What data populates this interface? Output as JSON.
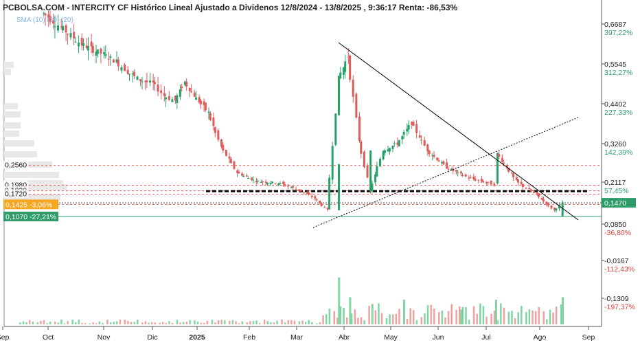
{
  "header": {
    "title": "PCBOLSA.COM - INTERCITY CF Histórico Lineal Ajustado a Dividenos 12/8/2024 - 13/8/2025 , 9:36:17 Renta: -86,53%",
    "indicator": "SMA (10) (20) (20)"
  },
  "colors": {
    "up": "#26a269",
    "down": "#e05a5a",
    "up_volume": "#7fd6a4",
    "down_volume": "#f2a0a0",
    "orange_tag": "#f5a623",
    "green_tag": "#2e9d6a",
    "pct_up": "#2e9d6a",
    "pct_down": "#e0443c",
    "level_line": "#e05a5a",
    "support_line": "#000000"
  },
  "chart_data": {
    "type": "candlestick",
    "title": "PCBOLSA.COM - INTERCITY CF Histórico Lineal Ajustado a Dividenos 12/8/2024 - 13/8/2025 , 9:36:17 Renta: -86,53%",
    "x_ticks": [
      "Sep",
      "Oct",
      "Nov",
      "Dic",
      "2025",
      "Feb",
      "Mar",
      "Abr",
      "May",
      "Jun",
      "Jul",
      "Ago",
      "Sep"
    ],
    "y_ticks": [
      {
        "value": "0,6687",
        "pct": "397,22%"
      },
      {
        "value": "0,5545",
        "pct": "312,27%"
      },
      {
        "value": "0,4402",
        "pct": "227,33%"
      },
      {
        "value": "0,3260",
        "pct": "142,39%"
      },
      {
        "value": "0,2117",
        "pct": "57,45%"
      },
      {
        "value": "0,0850",
        "pct": "-36,80%"
      },
      {
        "value": "-0,0167",
        "pct": "-112,43%"
      },
      {
        "value": "-0,1309",
        "pct": "-197,37%"
      }
    ],
    "last_price": "0,1470",
    "levels": [
      {
        "value": "0,2560"
      },
      {
        "value": "0,1980"
      },
      {
        "value": "0,1820"
      },
      {
        "value": "0,1720"
      },
      {
        "value": "0,1425",
        "pct": "-3,06%"
      },
      {
        "value": "0,1070",
        "pct": "-27,21%"
      }
    ],
    "series": [
      {
        "name": "Close",
        "points": [
          {
            "date": "2024-09-20",
            "value": 0.7
          },
          {
            "date": "2024-10-01",
            "value": 0.66
          },
          {
            "date": "2024-10-14",
            "value": 0.61
          },
          {
            "date": "2024-10-28",
            "value": 0.58
          },
          {
            "date": "2024-11-05",
            "value": 0.56
          },
          {
            "date": "2024-11-12",
            "value": 0.53
          },
          {
            "date": "2024-11-20",
            "value": 0.505
          },
          {
            "date": "2024-11-28",
            "value": 0.495
          },
          {
            "date": "2024-12-05",
            "value": 0.46
          },
          {
            "date": "2024-12-12",
            "value": 0.445
          },
          {
            "date": "2024-12-18",
            "value": 0.5
          },
          {
            "date": "2024-12-24",
            "value": 0.46
          },
          {
            "date": "2025-01-02",
            "value": 0.41
          },
          {
            "date": "2025-01-10",
            "value": 0.31
          },
          {
            "date": "2025-01-20",
            "value": 0.235
          },
          {
            "date": "2025-02-01",
            "value": 0.21
          },
          {
            "date": "2025-02-15",
            "value": 0.205
          },
          {
            "date": "2025-02-28",
            "value": 0.185
          },
          {
            "date": "2025-03-10",
            "value": 0.16
          },
          {
            "date": "2025-03-18",
            "value": 0.125
          },
          {
            "date": "2025-03-25",
            "value": 0.51
          },
          {
            "date": "2025-03-31",
            "value": 0.575
          },
          {
            "date": "2025-04-07",
            "value": 0.33
          },
          {
            "date": "2025-04-14",
            "value": 0.18
          },
          {
            "date": "2025-04-22",
            "value": 0.3
          },
          {
            "date": "2025-05-01",
            "value": 0.32
          },
          {
            "date": "2025-05-10",
            "value": 0.38
          },
          {
            "date": "2025-05-20",
            "value": 0.3
          },
          {
            "date": "2025-06-01",
            "value": 0.25
          },
          {
            "date": "2025-06-15",
            "value": 0.22
          },
          {
            "date": "2025-07-01",
            "value": 0.2
          },
          {
            "date": "2025-07-03",
            "value": 0.29
          },
          {
            "date": "2025-07-15",
            "value": 0.21
          },
          {
            "date": "2025-07-28",
            "value": 0.17
          },
          {
            "date": "2025-08-08",
            "value": 0.125
          },
          {
            "date": "2025-08-13",
            "value": 0.147
          }
        ]
      },
      {
        "name": "Volume",
        "points": [
          {
            "date": "2025-03-25",
            "value": 0.95
          },
          {
            "date": "2025-04-01",
            "value": 0.55
          },
          {
            "date": "2025-04-15",
            "value": 0.4
          },
          {
            "date": "2025-05-05",
            "value": 0.5
          },
          {
            "date": "2025-06-10",
            "value": 0.3
          },
          {
            "date": "2025-07-02",
            "value": 0.5
          },
          {
            "date": "2025-08-13",
            "value": 0.55
          }
        ]
      }
    ]
  }
}
